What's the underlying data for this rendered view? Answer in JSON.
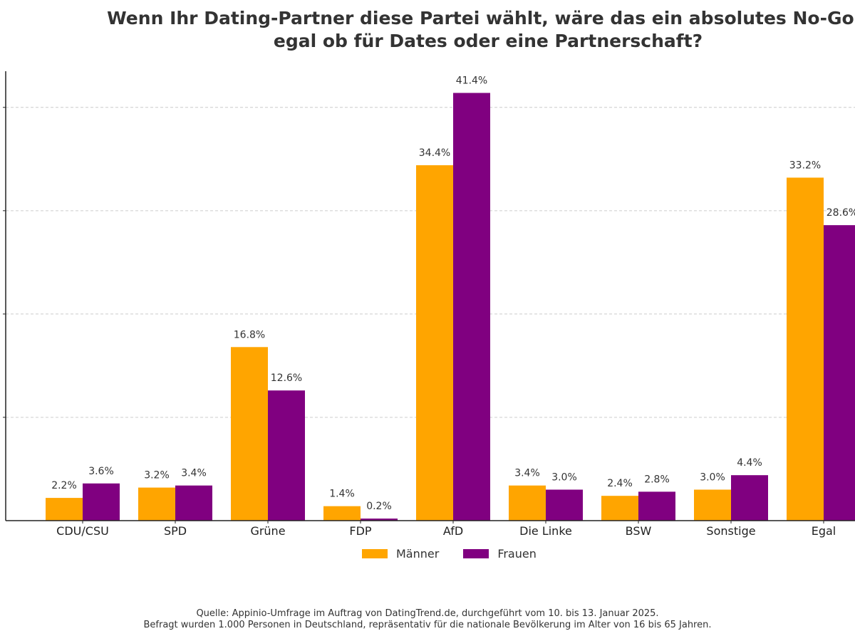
{
  "title": {
    "line1": "Wenn Ihr Dating-Partner diese Partei wählt, wäre das ein absolutes No-Go –",
    "line2": "egal ob für Dates oder eine Partnerschaft?"
  },
  "colors": {
    "maenner": "#FFA500",
    "frauen": "#800080",
    "grid": "#cccccc",
    "axis": "#222222"
  },
  "chart_data": {
    "type": "bar",
    "title": "Wenn Ihr Dating-Partner diese Partei wählt, wäre das ein absolutes No-Go – egal ob für Dates oder eine Partnerschaft?",
    "categories": [
      "CDU/CSU",
      "SPD",
      "Grüne",
      "FDP",
      "AfD",
      "Die Linke",
      "BSW",
      "Sonstige",
      "Egal"
    ],
    "series": [
      {
        "name": "Männer",
        "values": [
          2.2,
          3.2,
          16.8,
          1.4,
          34.4,
          3.4,
          2.4,
          3.0,
          33.2
        ]
      },
      {
        "name": "Frauen",
        "values": [
          3.6,
          3.4,
          12.6,
          0.2,
          41.4,
          3.0,
          2.8,
          4.4,
          28.6
        ]
      }
    ],
    "value_labels": {
      "Männer": [
        "2.2%",
        "3.2%",
        "16.8%",
        "1.4%",
        "34.4%",
        "3.4%",
        "2.4%",
        "3.0%",
        "33.2%"
      ],
      "Frauen": [
        "3.6%",
        "3.4%",
        "12.6%",
        "0.2%",
        "41.4%",
        "3.0%",
        "2.8%",
        "4.4%",
        "28.6%"
      ]
    },
    "xlabel": "",
    "ylabel": "",
    "ylim": [
      0,
      43.5
    ],
    "grid": true,
    "grid_values": [
      10,
      20,
      30,
      40
    ],
    "legend": "bottom-center"
  },
  "legend": {
    "maenner": "Männer",
    "frauen": "Frauen"
  },
  "source": {
    "line1": "Quelle: Appinio-Umfrage im Auftrag von DatingTrend.de, durchgeführt vom 10. bis 13. Januar 2025.",
    "line2": "Befragt wurden 1.000 Personen in Deutschland, repräsentativ für die nationale Bevölkerung im Alter von 16 bis 65 Jahren."
  }
}
